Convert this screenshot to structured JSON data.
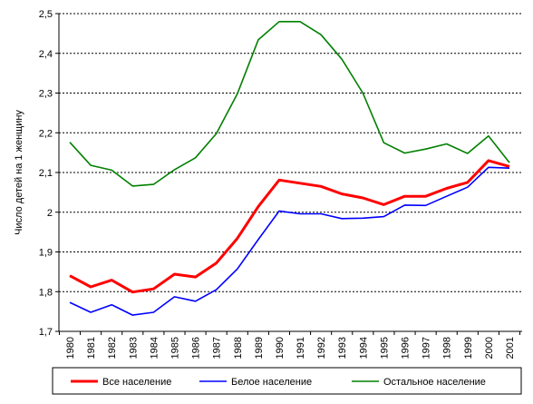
{
  "chart_data": {
    "type": "line",
    "title": "",
    "xlabel": "",
    "ylabel": "Число детей на 1 женщину",
    "ylim": [
      1.7,
      2.5
    ],
    "yticks": [
      "1,7",
      "1,8",
      "1,9",
      "2",
      "2,1",
      "2,2",
      "2,3",
      "2,4",
      "2,5"
    ],
    "x": [
      "1980",
      "1981",
      "1982",
      "1983",
      "1984",
      "1985",
      "1986",
      "1987",
      "1988",
      "1989",
      "1990",
      "1991",
      "1992",
      "1993",
      "1994",
      "1995",
      "1996",
      "1997",
      "1998",
      "1999",
      "2000",
      "2001"
    ],
    "grid": "horizontal dashed",
    "legend_position": "bottom",
    "series": [
      {
        "name": "Все население",
        "color": "#ff0000",
        "values": [
          1.84,
          1.812,
          1.829,
          1.799,
          1.807,
          1.844,
          1.837,
          1.872,
          1.934,
          2.014,
          2.081,
          2.073,
          2.065,
          2.046,
          2.036,
          2.019,
          2.04,
          2.04,
          2.06,
          2.075,
          2.13,
          2.115
        ]
      },
      {
        "name": "Белое население",
        "color": "#0000ff",
        "values": [
          1.773,
          1.748,
          1.767,
          1.741,
          1.748,
          1.787,
          1.776,
          1.805,
          1.857,
          1.931,
          2.003,
          1.996,
          1.996,
          1.984,
          1.985,
          1.989,
          2.018,
          2.017,
          2.04,
          2.063,
          2.113,
          2.111
        ]
      },
      {
        "name": "Остальное население",
        "color": "#008000",
        "values": [
          2.176,
          2.118,
          2.106,
          2.066,
          2.07,
          2.107,
          2.137,
          2.198,
          2.298,
          2.434,
          2.48,
          2.48,
          2.447,
          2.385,
          2.3,
          2.175,
          2.149,
          2.159,
          2.172,
          2.148,
          2.192,
          2.125
        ]
      }
    ]
  }
}
